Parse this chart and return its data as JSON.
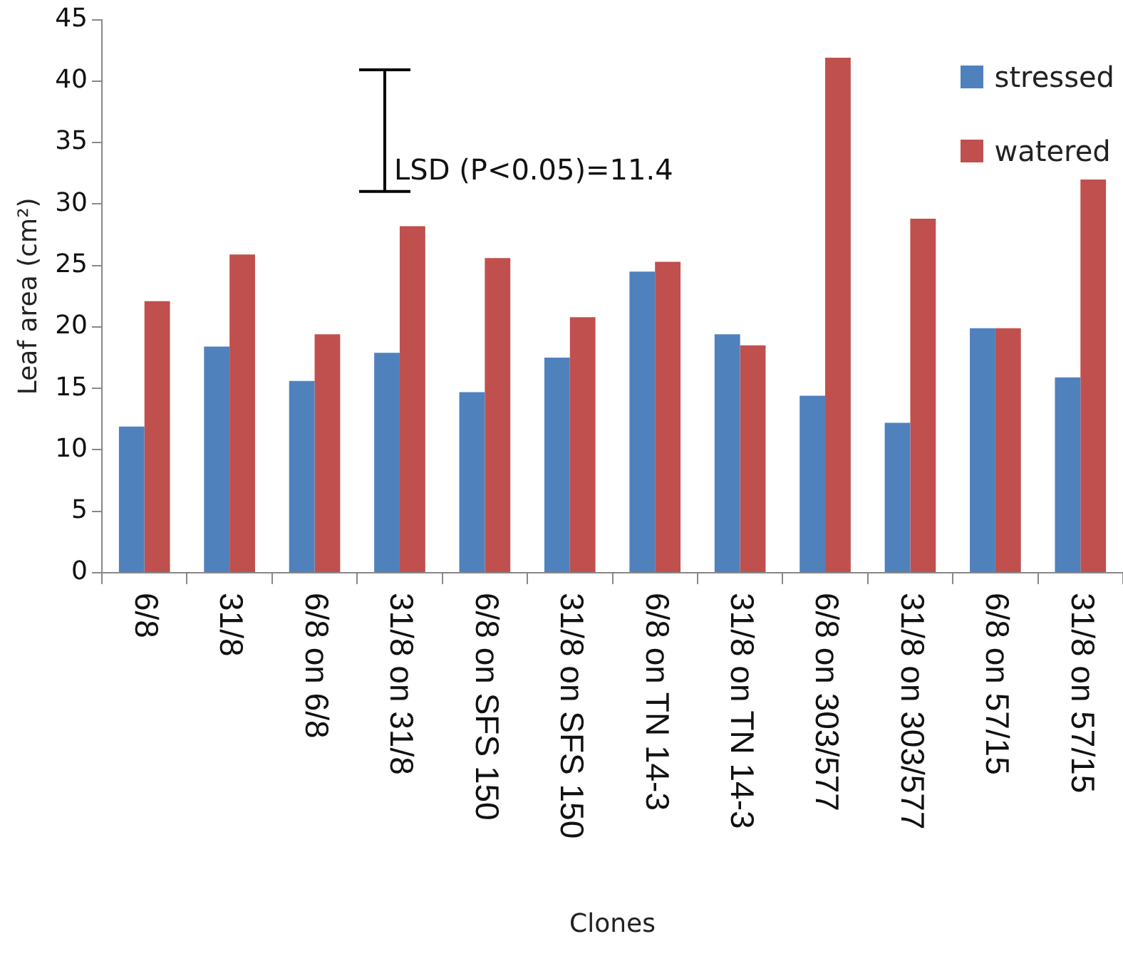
{
  "chart_data": {
    "type": "bar",
    "xlabel": "Clones",
    "ylabel": "Leaf area (cm²)",
    "categories": [
      "6/8",
      "31/8",
      "6/8 on 6/8",
      "31/8 on 31/8",
      "6/8 on SFS 150",
      "31/8 on SFS 150",
      "6/8 on TN 14-3",
      "31/8 on TN 14-3",
      "6/8 on 303/577",
      "31/8 on 303/577",
      "6/8 on 57/15",
      "31/8 on 57/15"
    ],
    "series": [
      {
        "name": "stressed",
        "color": "#4f81bd",
        "values": [
          11.9,
          18.4,
          15.6,
          17.9,
          14.7,
          17.5,
          24.5,
          19.4,
          14.4,
          12.2,
          19.9,
          15.9
        ]
      },
      {
        "name": "watered",
        "color": "#c0504d",
        "values": [
          22.1,
          25.9,
          19.4,
          28.2,
          25.6,
          20.8,
          25.3,
          18.5,
          41.9,
          28.8,
          19.9,
          32.0
        ]
      }
    ],
    "ylim": [
      0,
      45
    ],
    "yticks": [
      0,
      5,
      10,
      15,
      20,
      25,
      30,
      35,
      40,
      45
    ],
    "grid": false,
    "legend": "top right",
    "annotations": [
      "LSD (P<0.05)=11.4"
    ]
  }
}
